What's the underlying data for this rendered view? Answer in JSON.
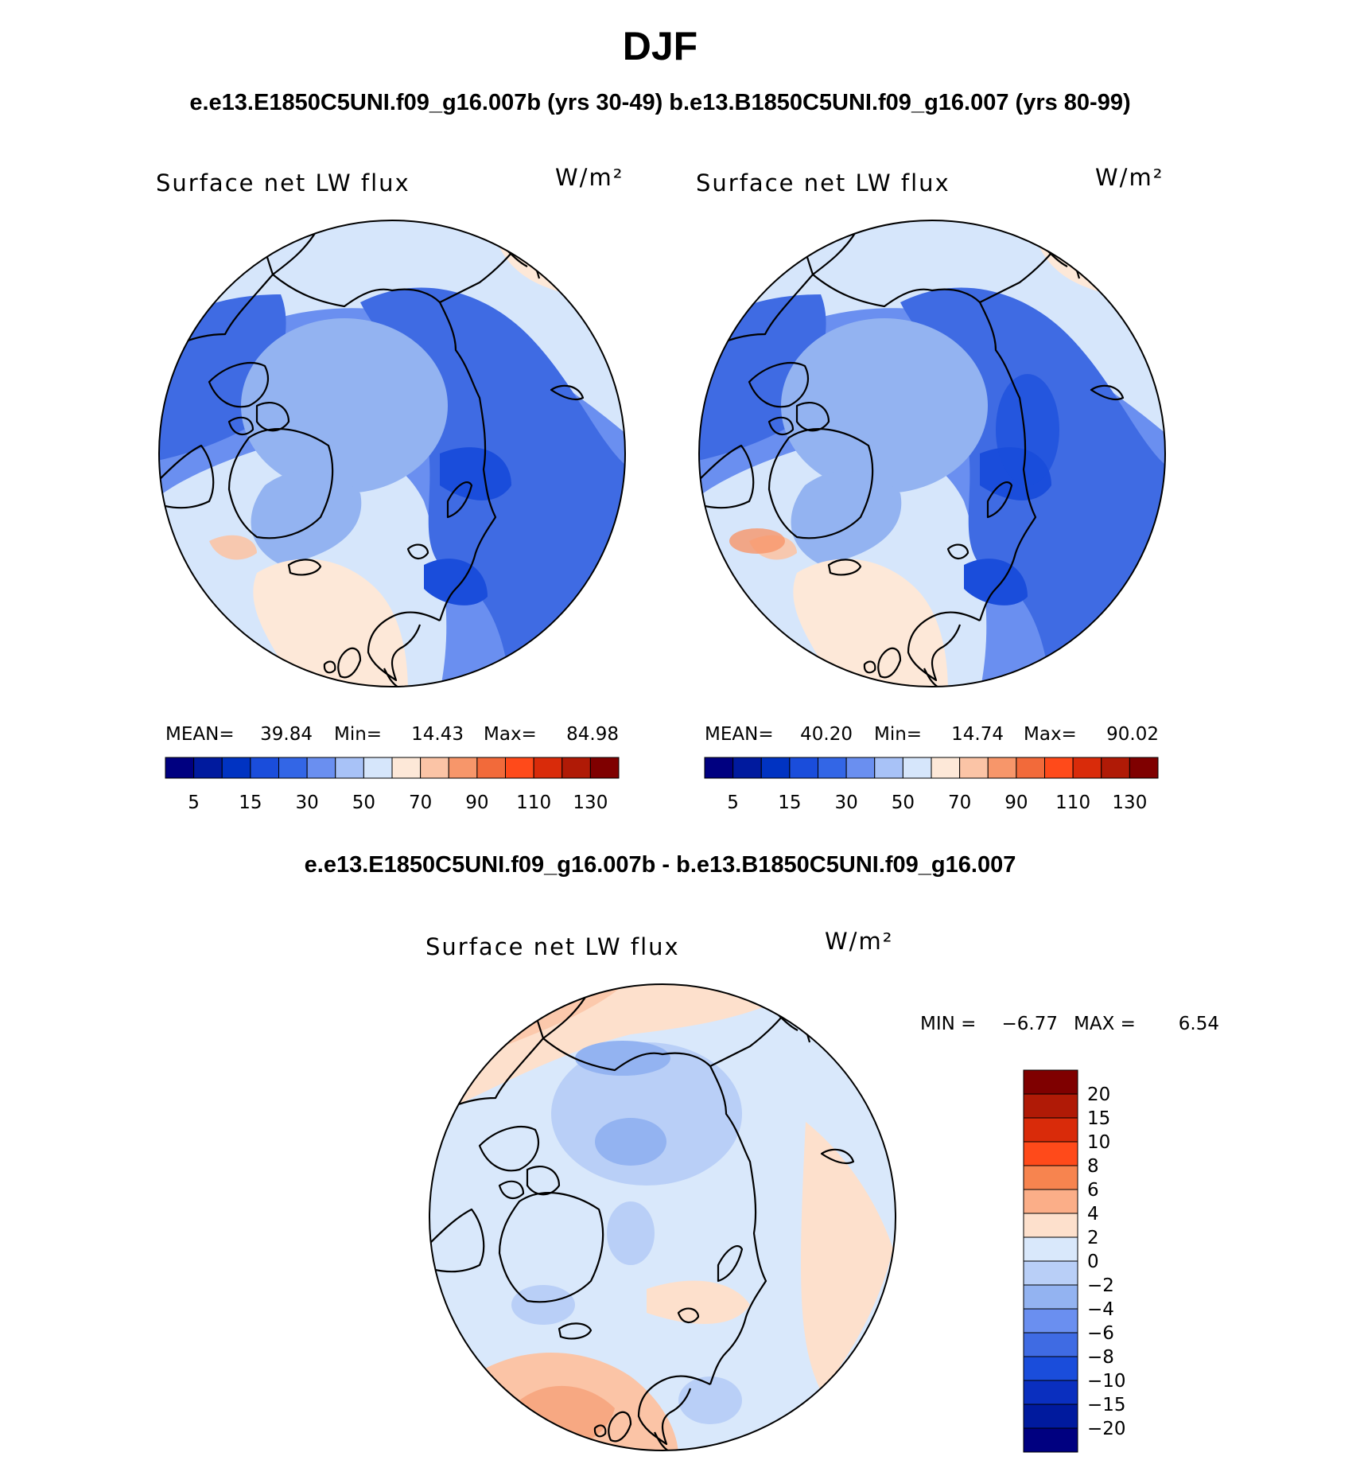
{
  "header": {
    "season": "DJF",
    "case_line": "e.e13.E1850C5UNI.f09_g16.007b (yrs 30-49)  b.e13.B1850C5UNI.f09_g16.007 (yrs 80-99)"
  },
  "panels": [
    {
      "variable": "Surface net LW flux",
      "units": "W/m²",
      "mean_label": "MEAN=",
      "mean_value": "39.84",
      "min_label": "Min=",
      "min_value": "14.43",
      "max_label": "Max=",
      "max_value": "84.98"
    },
    {
      "variable": "Surface net LW flux",
      "units": "W/m²",
      "mean_label": "MEAN=",
      "mean_value": "40.20",
      "min_label": "Min=",
      "min_value": "14.74",
      "max_label": "Max=",
      "max_value": "90.02"
    }
  ],
  "abs_colorbar": {
    "colors": [
      "#000080",
      "#001a9e",
      "#0033c2",
      "#1a4ddb",
      "#3366e6",
      "#6a8ff0",
      "#a8c2f7",
      "#d6e6fb",
      "#fde8d8",
      "#fbc4a6",
      "#f7966a",
      "#f26a3a",
      "#ff4a1a",
      "#d92b0a",
      "#b01a06",
      "#7f0000"
    ],
    "labels": [
      "5",
      "15",
      "30",
      "50",
      "70",
      "90",
      "110",
      "130"
    ]
  },
  "diff": {
    "title": "e.e13.E1850C5UNI.f09_g16.007b - b.e13.B1850C5UNI.f09_g16.007",
    "variable": "Surface net LW flux",
    "units": "W/m²",
    "min_label": "MIN =",
    "min_value": "−6.77",
    "max_label": "MAX =",
    "max_value": "6.54",
    "colorbar": {
      "colors_top_to_bottom": [
        "#7f0000",
        "#b01a06",
        "#d92b0a",
        "#ff4a1a",
        "#f7844f",
        "#fbae88",
        "#fde0cc",
        "#d9e8fb",
        "#b9cff7",
        "#93b3f1",
        "#6a8ff0",
        "#3f6be3",
        "#1a4ddb",
        "#0a2fbf",
        "#001a9e",
        "#000080"
      ],
      "labels_top_to_bottom": [
        "20",
        "15",
        "10",
        "8",
        "6",
        "4",
        "2",
        "0",
        "−2",
        "−4",
        "−6",
        "−8",
        "−10",
        "−15",
        "−20"
      ]
    }
  }
}
